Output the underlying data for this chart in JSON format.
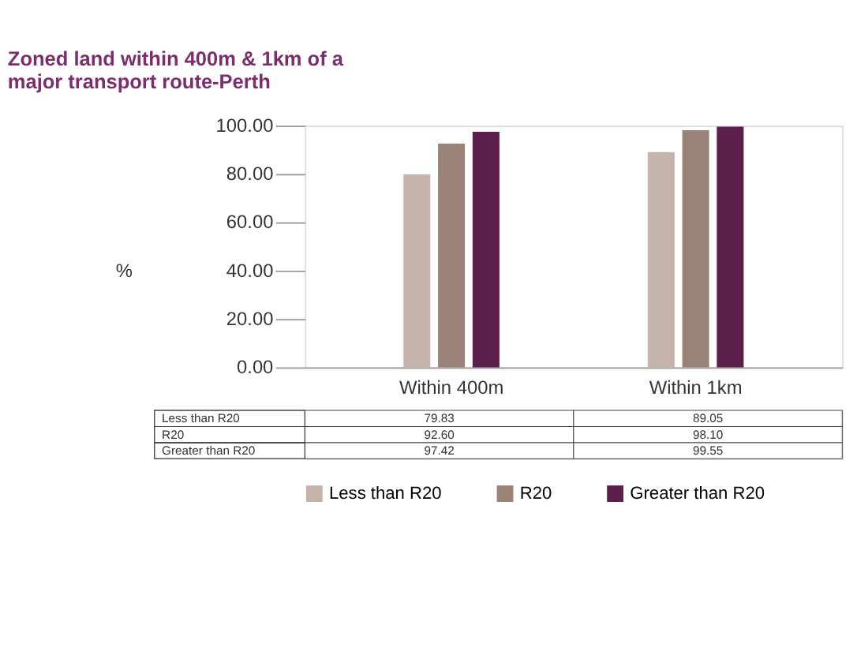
{
  "chart_data": {
    "type": "bar",
    "title": "Zoned land within 400m & 1km of a\nmajor transport route-Perth",
    "ylabel": "%",
    "categories": [
      "Within 400m",
      "Within 1km"
    ],
    "series": [
      {
        "name": "Less than R20",
        "color": "#c4b4aa",
        "values": [
          79.83,
          89.05
        ],
        "value_labels": [
          "79.83",
          "89.05"
        ]
      },
      {
        "name": "R20",
        "color": "#9b8277",
        "values": [
          92.6,
          98.1
        ],
        "value_labels": [
          "92.60",
          "98.10"
        ]
      },
      {
        "name": "Greater than R20",
        "color": "#5c1e4a",
        "values": [
          97.42,
          99.55
        ],
        "value_labels": [
          "97.42",
          "99.55"
        ]
      }
    ],
    "ylim": [
      0,
      100
    ],
    "yticks": [
      {
        "value": 0,
        "label": "0.00"
      },
      {
        "value": 20,
        "label": "20.00"
      },
      {
        "value": 40,
        "label": "40.00"
      },
      {
        "value": 60,
        "label": "60.00"
      },
      {
        "value": 80,
        "label": "80.00"
      },
      {
        "value": 100,
        "label": "100.00"
      }
    ],
    "grid": false,
    "legend": "bottom"
  }
}
